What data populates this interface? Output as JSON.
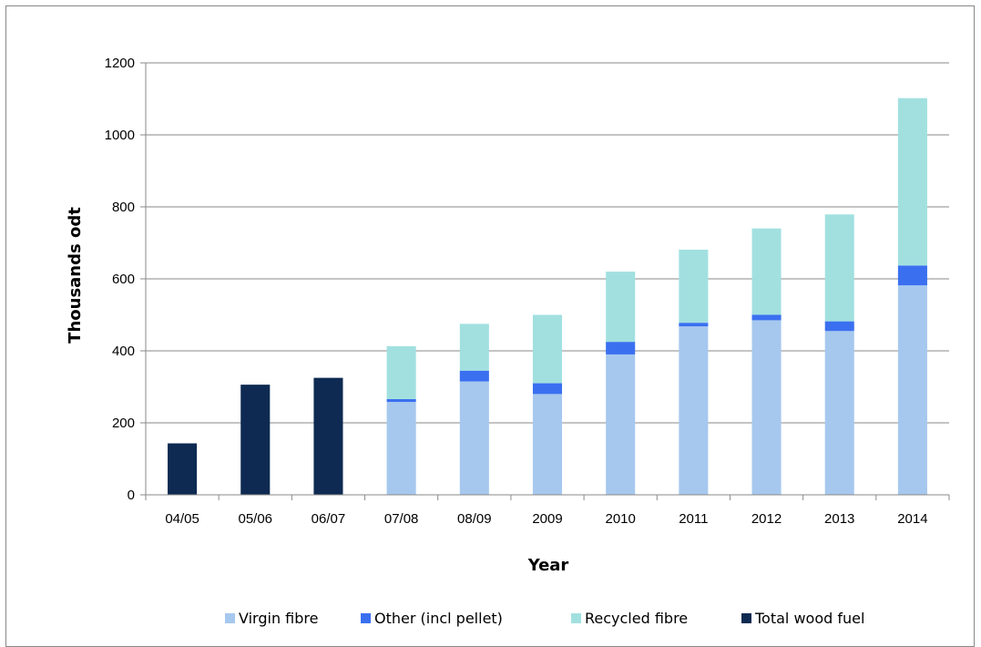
{
  "chart_data": {
    "type": "bar",
    "stacked": true,
    "title": "",
    "xlabel": "Year",
    "ylabel": "Thousands odt",
    "ylim": [
      0,
      1200
    ],
    "yticks": [
      "0",
      "200",
      "400",
      "600",
      "800",
      "1000",
      "1200"
    ],
    "grid": true,
    "legend_position": "bottom",
    "categories": [
      "04/05",
      "05/06",
      "06/07",
      "07/08",
      "08/09",
      "2009",
      "2010",
      "2011",
      "2012",
      "2013",
      "2014"
    ],
    "series": [
      {
        "name": "Virgin fibre",
        "color": "#a6c8ee",
        "values": [
          0,
          0,
          0,
          258,
          315,
          280,
          390,
          468,
          485,
          455,
          582
        ]
      },
      {
        "name": "Other (incl pellet)",
        "color": "#3a70f0",
        "values": [
          0,
          0,
          0,
          8,
          30,
          30,
          35,
          10,
          15,
          27,
          55
        ]
      },
      {
        "name": "Recycled fibre",
        "color": "#a2e0e0",
        "values": [
          0,
          0,
          0,
          147,
          130,
          190,
          195,
          203,
          240,
          297,
          465
        ]
      },
      {
        "name": "Total wood fuel",
        "color": "#0e2a52",
        "values": [
          143,
          306,
          325,
          0,
          0,
          0,
          0,
          0,
          0,
          0,
          0
        ]
      }
    ]
  }
}
